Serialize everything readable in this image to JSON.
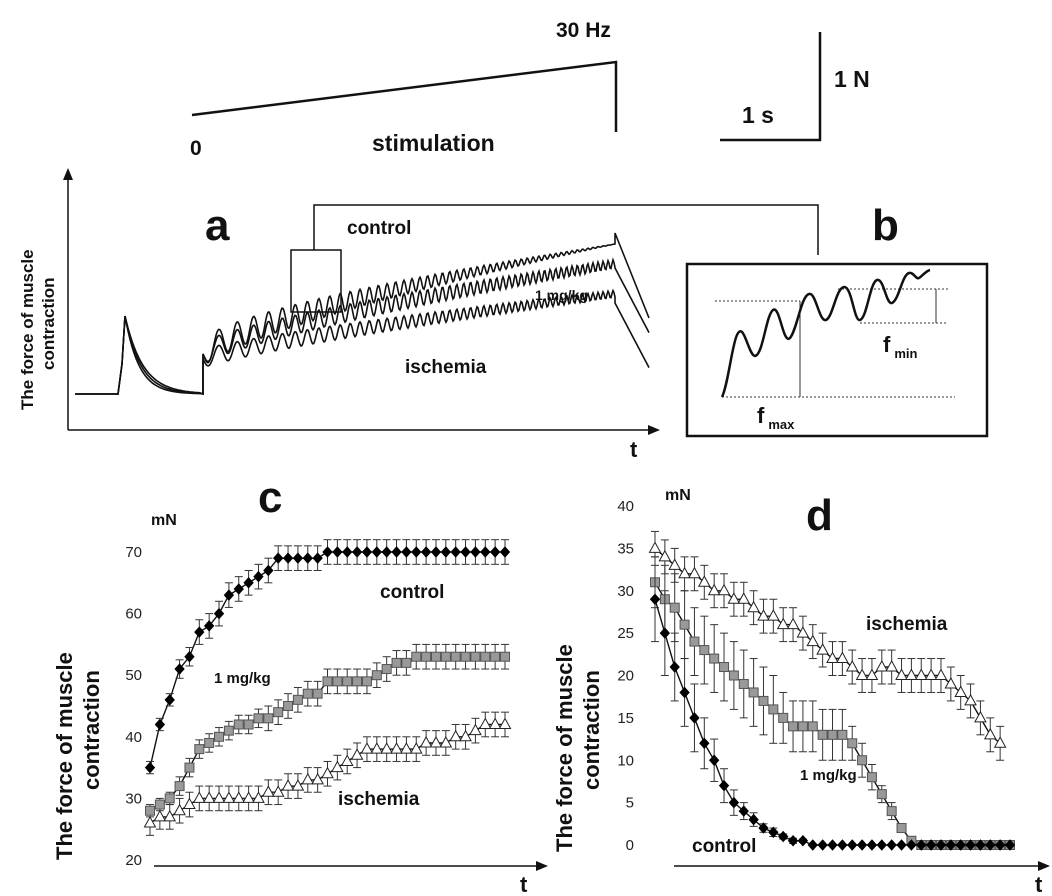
{
  "stimulation": {
    "start_label": "0",
    "end_label": "30 Hz",
    "label": "stimulation"
  },
  "scale_bar": {
    "time": "1 s",
    "force": "1 N"
  },
  "panel_a": {
    "letter": "a",
    "ylabel_line1": "The force of muscle",
    "ylabel_line2": "contraction",
    "xlabel": "t",
    "traces": [
      "control",
      "1 mg/kg",
      "ischemia"
    ]
  },
  "panel_b": {
    "letter": "b",
    "fmax_main": "f",
    "fmax_sub": "max",
    "fmin_main": "f",
    "fmin_sub": "min"
  },
  "chart_data": [
    {
      "panel": "c",
      "type": "line",
      "ylabel_line1": "The force of muscle",
      "ylabel_line2": "contraction",
      "yunit": "mN",
      "xlabel": "t",
      "ylim": [
        20,
        70
      ],
      "yticks": [
        20,
        30,
        40,
        50,
        60,
        70
      ],
      "x": [
        1,
        2,
        3,
        4,
        5,
        6,
        7,
        8,
        9,
        10,
        11,
        12,
        13,
        14,
        15,
        16,
        17,
        18,
        19,
        20,
        21,
        22,
        23,
        24,
        25,
        26,
        27,
        28,
        29,
        30,
        31,
        32,
        33,
        34,
        35,
        36,
        37
      ],
      "series": [
        {
          "name": "control",
          "marker": "diamond",
          "color": "#000000",
          "values": [
            35,
            42,
            46,
            51,
            53,
            57,
            58,
            60,
            63,
            64,
            65,
            66,
            67,
            69,
            69,
            69,
            69,
            69,
            70,
            70,
            70,
            70,
            70,
            70,
            70,
            70,
            70,
            70,
            70,
            70,
            70,
            70,
            70,
            70,
            70,
            70,
            70
          ],
          "errors": [
            1,
            1,
            1,
            1.5,
            1.5,
            2,
            2,
            2,
            2,
            2,
            2,
            2,
            2,
            2,
            2,
            2,
            2,
            2,
            2,
            2,
            2,
            2,
            2,
            2,
            2,
            2,
            2,
            2,
            2,
            2,
            2,
            2,
            2,
            2,
            2,
            2,
            2
          ]
        },
        {
          "name": "1 mg/kg",
          "marker": "square",
          "color": "#999999",
          "values": [
            28,
            29,
            30,
            32,
            35,
            38,
            39,
            40,
            41,
            42,
            42,
            43,
            43,
            44,
            45,
            46,
            47,
            47,
            49,
            49,
            49,
            49,
            49,
            50,
            51,
            52,
            52,
            53,
            53,
            53,
            53,
            53,
            53,
            53,
            53,
            53,
            53
          ],
          "errors": [
            1,
            1,
            1,
            1.5,
            1.5,
            1.5,
            1.5,
            1.5,
            1.5,
            1.5,
            1.5,
            1.5,
            2,
            2,
            2,
            2,
            2,
            2,
            2,
            2,
            2,
            2,
            2,
            2,
            2,
            2,
            2,
            2,
            2,
            2,
            2,
            2,
            2,
            2,
            2,
            2,
            2
          ]
        },
        {
          "name": "ischemia",
          "marker": "triangle",
          "color": "#ffffff",
          "values": [
            26,
            27,
            27,
            28,
            29,
            30,
            30,
            30,
            30,
            30,
            30,
            30,
            31,
            31,
            32,
            32,
            33,
            33,
            34,
            35,
            36,
            37,
            38,
            38,
            38,
            38,
            38,
            38,
            39,
            39,
            39,
            40,
            40,
            41,
            42,
            42,
            42
          ],
          "errors": [
            2,
            2,
            2,
            2,
            2,
            2,
            2,
            2,
            2,
            2,
            2,
            2,
            2,
            2,
            2,
            2,
            2,
            2,
            2,
            2,
            2,
            2,
            2,
            2,
            2,
            2,
            2,
            2,
            2,
            2,
            2,
            2,
            2,
            2,
            2,
            2,
            2
          ]
        }
      ]
    },
    {
      "panel": "d",
      "type": "line",
      "ylabel_line1": "The force of muscle",
      "ylabel_line2": "contraction",
      "yunit": "mN",
      "xlabel": "t",
      "ylim": [
        0,
        40
      ],
      "yticks": [
        0,
        5,
        10,
        15,
        20,
        25,
        30,
        35,
        40
      ],
      "x": [
        1,
        2,
        3,
        4,
        5,
        6,
        7,
        8,
        9,
        10,
        11,
        12,
        13,
        14,
        15,
        16,
        17,
        18,
        19,
        20,
        21,
        22,
        23,
        24,
        25,
        26,
        27,
        28,
        29,
        30,
        31,
        32,
        33,
        34,
        35,
        36,
        37
      ],
      "series": [
        {
          "name": "control",
          "marker": "diamond",
          "color": "#000000",
          "values": [
            29,
            25,
            21,
            18,
            15,
            12,
            10,
            7,
            5,
            4,
            3,
            2,
            1.5,
            1,
            0.5,
            0.5,
            0,
            0,
            0,
            0,
            0,
            0,
            0,
            0,
            0,
            0,
            0,
            0,
            0,
            0,
            0,
            0,
            0,
            0,
            0,
            0,
            0
          ],
          "errors": [
            5,
            5,
            4,
            4,
            4,
            3,
            2.5,
            2,
            1.5,
            1,
            0.8,
            0.5,
            0.5,
            0.3,
            0.3,
            0.2,
            0,
            0,
            0,
            0,
            0,
            0,
            0,
            0,
            0,
            0,
            0,
            0,
            0,
            0,
            0,
            0,
            0,
            0,
            0,
            0,
            0
          ]
        },
        {
          "name": "1 mg/kg",
          "marker": "square",
          "color": "#999999",
          "values": [
            31,
            29,
            28,
            26,
            24,
            23,
            22,
            21,
            20,
            19,
            18,
            17,
            16,
            15,
            14,
            14,
            14,
            13,
            13,
            13,
            12,
            10,
            8,
            6,
            4,
            2,
            0.5,
            0,
            0,
            0,
            0,
            0,
            0,
            0,
            0,
            0,
            0
          ],
          "errors": [
            3,
            4,
            4,
            4,
            4,
            4,
            4,
            4,
            4,
            4,
            4,
            4,
            4,
            3,
            3,
            3,
            3,
            3,
            3,
            3,
            2,
            2,
            1.5,
            1,
            1,
            0.5,
            0.3,
            0,
            0,
            0,
            0,
            0,
            0,
            0,
            0,
            0,
            0
          ]
        },
        {
          "name": "ischemia",
          "marker": "triangle",
          "color": "#ffffff",
          "values": [
            35,
            34,
            33,
            32,
            32,
            31,
            30,
            30,
            29,
            29,
            28,
            27,
            27,
            26,
            26,
            25,
            24,
            23,
            22,
            22,
            21,
            20,
            20,
            21,
            21,
            20,
            20,
            20,
            20,
            20,
            19,
            18,
            17,
            15,
            13,
            12,
            null
          ],
          "errors": [
            2,
            2,
            2,
            2,
            2,
            2,
            2,
            2,
            2,
            2,
            2,
            2,
            2,
            2,
            2,
            2,
            2,
            2,
            2,
            2,
            2,
            2,
            2,
            2,
            2,
            2,
            2,
            2,
            2,
            2,
            2,
            2,
            2,
            2,
            2,
            2,
            0
          ]
        }
      ]
    }
  ]
}
